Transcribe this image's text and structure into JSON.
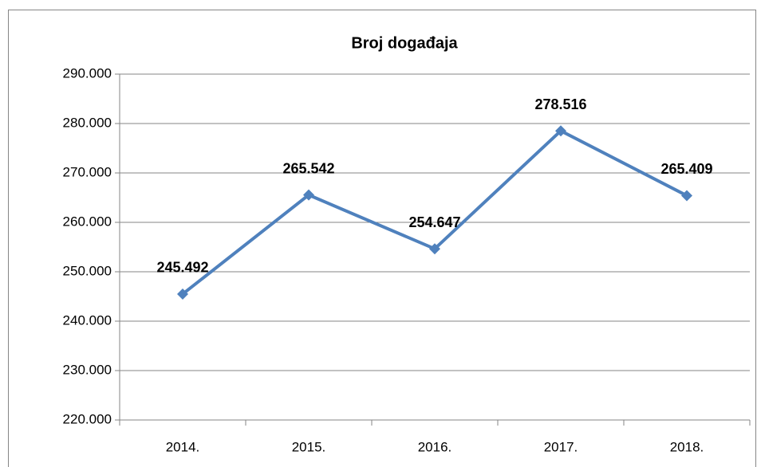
{
  "chart_data": {
    "type": "line",
    "title": "Broj događaja",
    "categories": [
      "2014.",
      "2015.",
      "2016.",
      "2017.",
      "2018."
    ],
    "series": [
      {
        "name": "Broj događaja",
        "color": "#4f81bd",
        "values": [
          245492,
          265542,
          254647,
          278516,
          265409
        ],
        "value_labels": [
          "245.492",
          "265.542",
          "254.647",
          "278.516",
          "265.409"
        ]
      }
    ],
    "ylim": [
      220000,
      290000
    ],
    "yticks": [
      {
        "value": 220000,
        "label": "220.000"
      },
      {
        "value": 230000,
        "label": "230.000"
      },
      {
        "value": 240000,
        "label": "240.000"
      },
      {
        "value": 250000,
        "label": "250.000"
      },
      {
        "value": 260000,
        "label": "260.000"
      },
      {
        "value": 270000,
        "label": "270.000"
      },
      {
        "value": 280000,
        "label": "280.000"
      },
      {
        "value": 290000,
        "label": "290.000"
      }
    ],
    "grid": true
  }
}
